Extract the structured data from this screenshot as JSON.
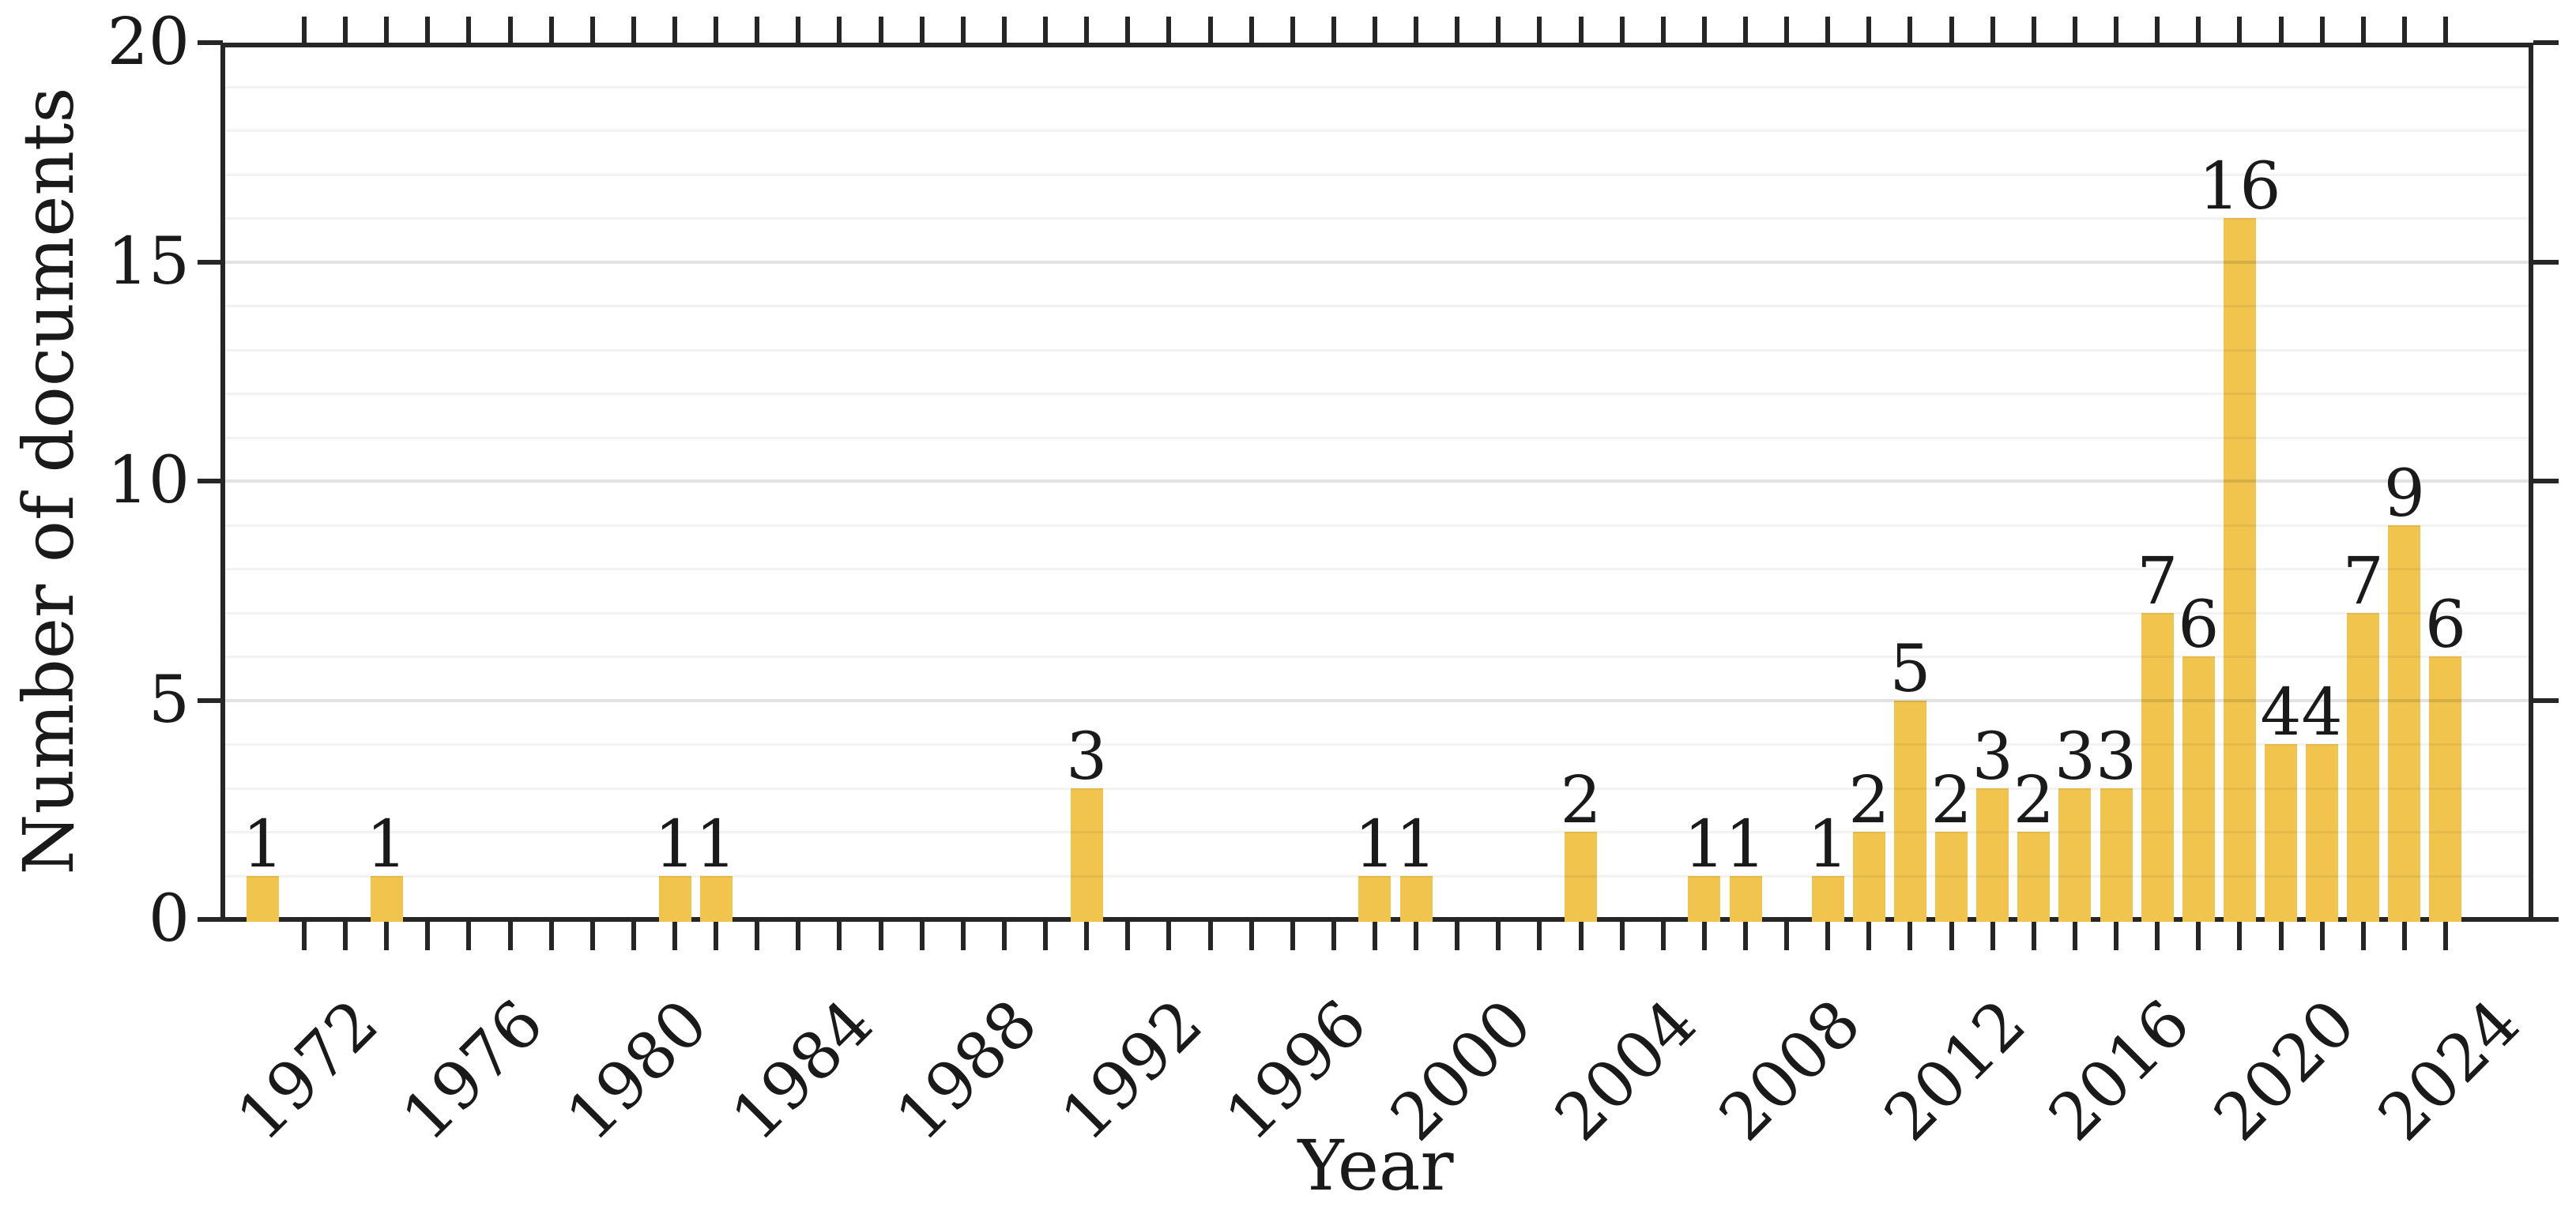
{
  "figure": {
    "background": "#ffffff",
    "axis_color": "#262626",
    "text_color": "#1a1a1a"
  },
  "chart_data": {
    "type": "bar",
    "title": "",
    "xlabel": "Year",
    "ylabel": "Number of documents",
    "x": [
      1971,
      1974,
      1981,
      1982,
      1991,
      1998,
      1999,
      2003,
      2006,
      2007,
      2009,
      2010,
      2011,
      2012,
      2013,
      2014,
      2015,
      2016,
      2017,
      2018,
      2019,
      2020,
      2021,
      2022,
      2023,
      2024
    ],
    "values": [
      1,
      1,
      1,
      1,
      3,
      1,
      1,
      2,
      1,
      1,
      1,
      2,
      5,
      2,
      3,
      2,
      3,
      3,
      7,
      6,
      16,
      4,
      4,
      7,
      9,
      6
    ],
    "bar_labels": [
      "1",
      "1",
      "1",
      "1",
      "3",
      "1",
      "1",
      "2",
      "1",
      "1",
      "1",
      "2",
      "5",
      "2",
      "3",
      "2",
      "3",
      "3",
      "7",
      "6",
      "16",
      "4",
      "4",
      "7",
      "9",
      "6"
    ],
    "bar_color": "#F0C44D",
    "xlim": [
      1970,
      2026
    ],
    "ylim": [
      0,
      20
    ],
    "yticks": [
      0,
      5,
      10,
      15,
      20
    ],
    "ytick_labels": [
      "0",
      "5",
      "10",
      "15",
      "20"
    ],
    "minor_xtick_years_start": 1972,
    "minor_xtick_years_end": 2024,
    "xtick_label_years": [
      1972,
      1976,
      1980,
      1984,
      1988,
      1992,
      1996,
      2000,
      2004,
      2008,
      2012,
      2016,
      2020,
      2024
    ],
    "grid": "horizontal lines every 1 unit, darker at 5/10/15, drawn over bars",
    "legend_position": "none"
  }
}
